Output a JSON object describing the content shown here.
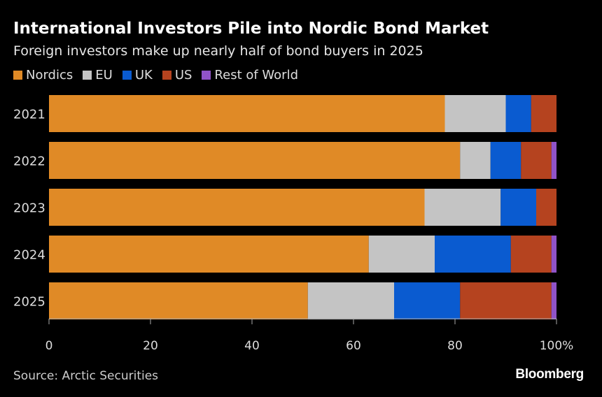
{
  "chart_data": {
    "type": "bar",
    "orientation": "horizontal-stacked-100",
    "title": "International Investors Pile into Nordic Bond Market",
    "subtitle": "Foreign investors make up nearly half of bond buyers in 2025",
    "categories": [
      "2021",
      "2022",
      "2023",
      "2024",
      "2025"
    ],
    "series": [
      {
        "name": "Nordics",
        "color": "#e08a26",
        "values": [
          78,
          81,
          74,
          63,
          51
        ]
      },
      {
        "name": "EU",
        "color": "#c4c4c4",
        "values": [
          12,
          6,
          15,
          13,
          17
        ]
      },
      {
        "name": "UK",
        "color": "#0a5bd0",
        "values": [
          5,
          6,
          7,
          15,
          13
        ]
      },
      {
        "name": "US",
        "color": "#b5431f",
        "values": [
          5,
          6,
          4,
          8,
          18
        ]
      },
      {
        "name": "Rest of World",
        "color": "#9053c8",
        "values": [
          0,
          1,
          0,
          1,
          1
        ]
      }
    ],
    "xlim": [
      0,
      100
    ],
    "xticks": [
      "0",
      "20",
      "40",
      "60",
      "80",
      "100%"
    ],
    "legend": "top-left",
    "grid": false
  },
  "source": "Source: Arctic Securities",
  "logo": "Bloomberg"
}
